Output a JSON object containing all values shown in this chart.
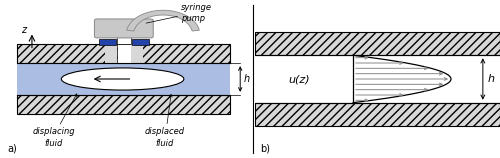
{
  "fig_width": 5.0,
  "fig_height": 1.58,
  "dpi": 100,
  "background_color": "#ffffff",
  "plate_hatch": "////",
  "plate_face": "#d8d8d8",
  "plate_edge": "#000000",
  "blue_fluid": "#6688cc",
  "blue_alpha": 0.55,
  "dark_blue": "#2244aa",
  "syringe_gray": "#c8c8c8",
  "syringe_edge": "#888888",
  "arrow_gray": "#888888",
  "text_color": "#000000",
  "label_a": "a)",
  "label_b": "b)",
  "label_displacing": "displacing\nfluid",
  "label_displaced": "displaced\nfluid",
  "label_syringe": "syringe\npump",
  "label_uz": "u(z)",
  "label_h": "h",
  "label_z": "z"
}
